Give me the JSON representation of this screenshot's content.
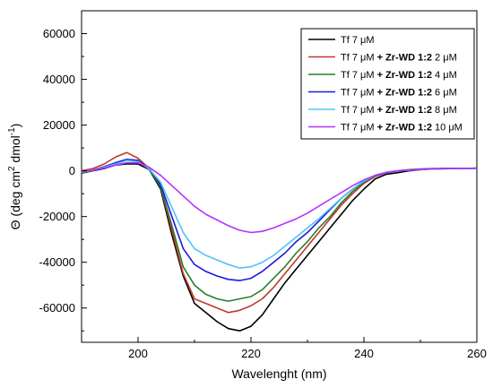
{
  "chart_data": {
    "type": "line",
    "title": "",
    "xlabel": "Wavelenght (nm)",
    "ylabel": {
      "base": "Θ (deg cm",
      "sup1": "2",
      "mid": " dmol",
      "sup2": "-1",
      "end": ")"
    },
    "xlim": [
      190,
      260
    ],
    "ylim": [
      -75000,
      70000
    ],
    "x_ticks": [
      200,
      220,
      240,
      260
    ],
    "x_tick_labels": [
      "200",
      "220",
      "240",
      "260"
    ],
    "y_ticks": [
      60000,
      40000,
      20000,
      0,
      -20000,
      -40000,
      -60000
    ],
    "y_tick_labels": [
      "60000",
      "40000",
      "20000",
      "0",
      "-20000",
      "-40000",
      "-60000"
    ],
    "grid": false,
    "legend_position": "top-right",
    "x": [
      190,
      192,
      194,
      196,
      198,
      200,
      202,
      204,
      206,
      208,
      210,
      212,
      214,
      216,
      218,
      220,
      222,
      224,
      226,
      228,
      230,
      232,
      234,
      236,
      238,
      240,
      242,
      244,
      246,
      248,
      250,
      252,
      254,
      256,
      258,
      260
    ],
    "series": [
      {
        "label_parts": [
          {
            "text": "Tf 7 μM",
            "bold": false
          }
        ],
        "color": "#000000",
        "values": [
          -1000,
          0,
          1000,
          2500,
          3000,
          3000,
          500,
          -8000,
          -28000,
          -46000,
          -58000,
          -62000,
          -66000,
          -69000,
          -70000,
          -68000,
          -63000,
          -56000,
          -49000,
          -43000,
          -37000,
          -31000,
          -25000,
          -19000,
          -13000,
          -8000,
          -3500,
          -1500,
          -800,
          0,
          500,
          800,
          1000,
          1000,
          1000,
          1200
        ]
      },
      {
        "label_parts": [
          {
            "text": "Tf 7 μM ",
            "bold": false
          },
          {
            "text": "+ Zr-WD 1:2",
            "bold": true
          },
          {
            "text": " 2 μM",
            "bold": false
          }
        ],
        "color": "#c0392b",
        "values": [
          0,
          1000,
          3000,
          6000,
          8000,
          5500,
          1000,
          -7000,
          -26000,
          -45000,
          -56000,
          -58000,
          -60000,
          -62000,
          -61000,
          -59000,
          -56000,
          -51000,
          -45000,
          -39000,
          -33000,
          -27000,
          -21000,
          -15000,
          -10000,
          -5500,
          -2500,
          -800,
          0,
          500,
          800,
          1000,
          1000,
          1000,
          1000,
          1000
        ]
      },
      {
        "label_parts": [
          {
            "text": "Tf 7 μM ",
            "bold": false
          },
          {
            "text": "+ Zr-WD 1:2",
            "bold": true
          },
          {
            "text": " 4 μM",
            "bold": false
          }
        ],
        "color": "#2a7d2a",
        "values": [
          -800,
          200,
          1500,
          3500,
          5000,
          4500,
          500,
          -7000,
          -24000,
          -42000,
          -50000,
          -54000,
          -56000,
          -57000,
          -56000,
          -55000,
          -52000,
          -47000,
          -42000,
          -36000,
          -31000,
          -25000,
          -20000,
          -14000,
          -9000,
          -5000,
          -2200,
          -700,
          0,
          400,
          700,
          900,
          1000,
          1000,
          1000,
          1000
        ]
      },
      {
        "label_parts": [
          {
            "text": "Tf 7 μM ",
            "bold": false
          },
          {
            "text": "+ Zr-WD 1:2",
            "bold": true
          },
          {
            "text": " 6 μM",
            "bold": false
          }
        ],
        "color": "#1a1ae0",
        "values": [
          -500,
          300,
          1800,
          3500,
          5000,
          4500,
          1000,
          -6000,
          -20000,
          -34000,
          -41000,
          -44000,
          -46000,
          -47500,
          -48000,
          -47000,
          -44000,
          -40000,
          -36000,
          -31000,
          -27000,
          -22000,
          -17000,
          -12000,
          -8000,
          -4500,
          -2000,
          -600,
          0,
          300,
          600,
          800,
          900,
          1000,
          1000,
          1000
        ]
      },
      {
        "label_parts": [
          {
            "text": "Tf 7 μM ",
            "bold": false
          },
          {
            "text": "+ Zr-WD 1:2",
            "bold": true
          },
          {
            "text": " 8 μM",
            "bold": false
          }
        ],
        "color": "#4fc3f7",
        "values": [
          -600,
          200,
          1500,
          3000,
          4500,
          4000,
          800,
          -5000,
          -16000,
          -27000,
          -34000,
          -37000,
          -39000,
          -41000,
          -42500,
          -42000,
          -40000,
          -37000,
          -33000,
          -29000,
          -25000,
          -21000,
          -16500,
          -12000,
          -8000,
          -4500,
          -2000,
          -600,
          0,
          300,
          600,
          800,
          900,
          1000,
          1000,
          1000
        ]
      },
      {
        "label_parts": [
          {
            "text": "Tf 7 μM ",
            "bold": false
          },
          {
            "text": "+ Zr-WD 1:2",
            "bold": true
          },
          {
            "text": " 10 μM",
            "bold": false
          }
        ],
        "color": "#b233ff",
        "values": [
          -300,
          300,
          1200,
          2500,
          3500,
          3500,
          1500,
          -2000,
          -6500,
          -11000,
          -15500,
          -19000,
          -21500,
          -24000,
          -26000,
          -27000,
          -26500,
          -25000,
          -23000,
          -21000,
          -18500,
          -15500,
          -12500,
          -9500,
          -6500,
          -4000,
          -2000,
          -800,
          0,
          300,
          600,
          800,
          900,
          1000,
          1000,
          1100
        ]
      }
    ]
  }
}
